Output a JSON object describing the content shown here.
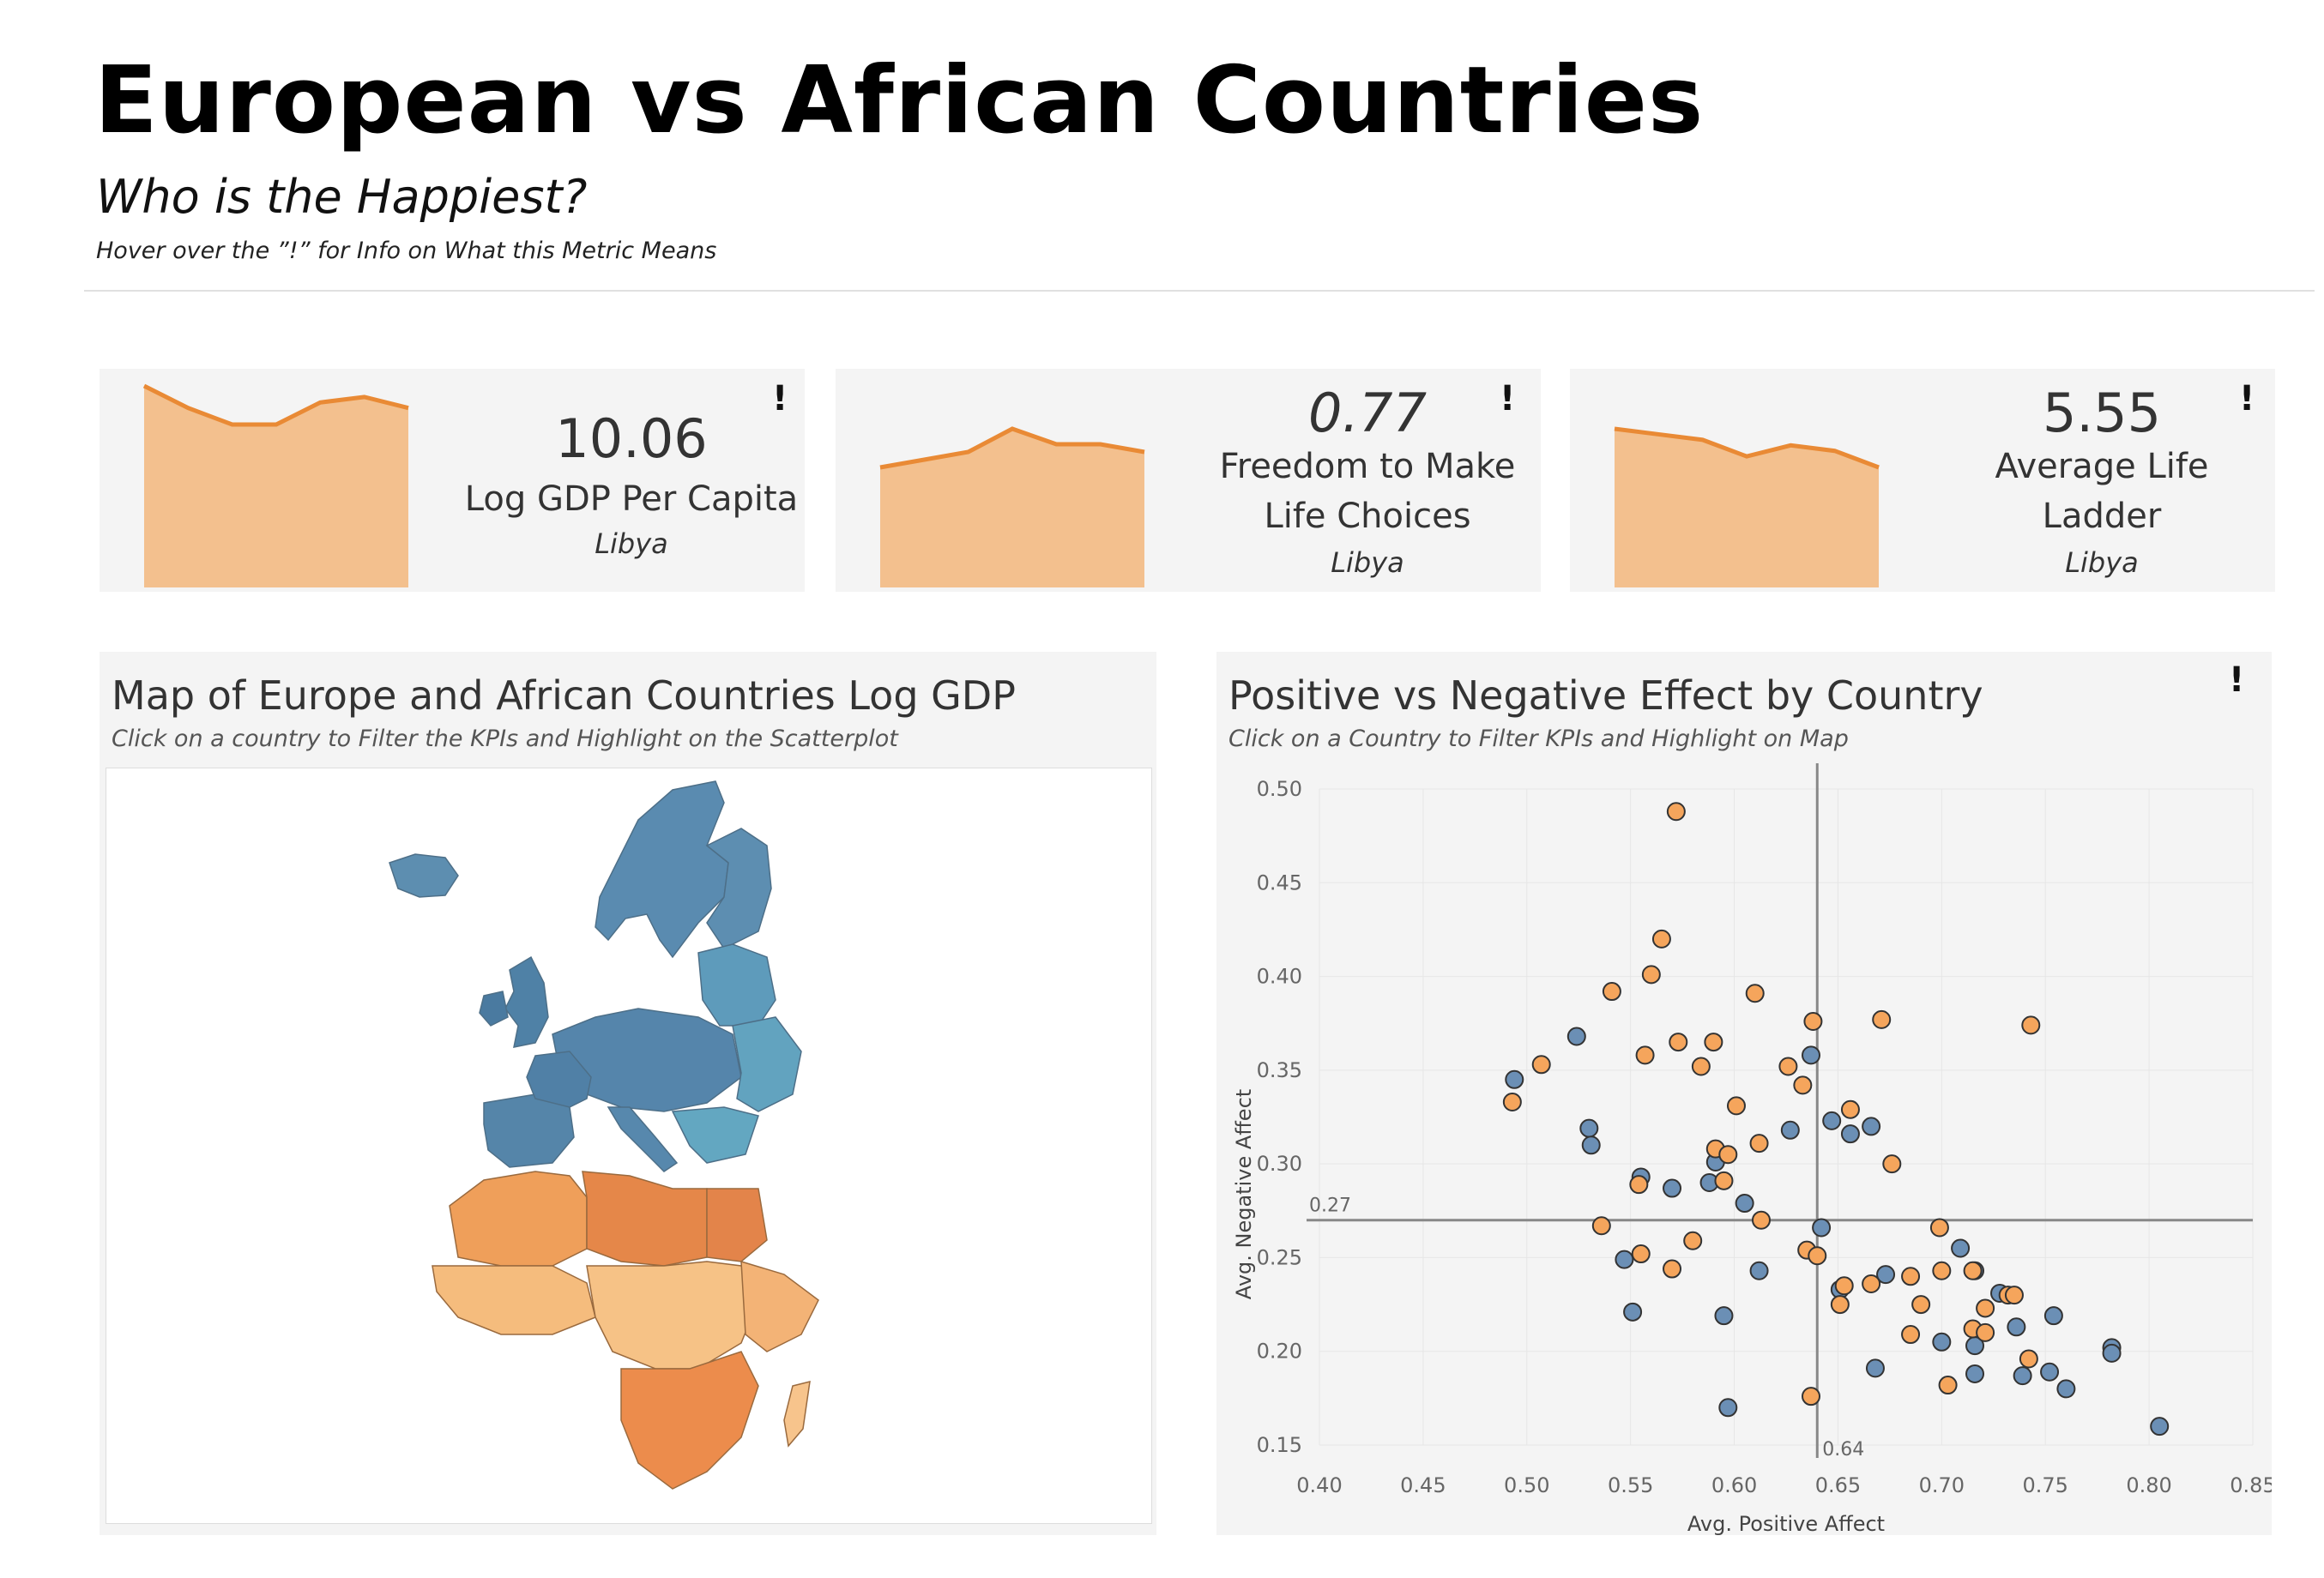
{
  "header": {
    "title": "European vs African Countries",
    "subtitle": "Who is the Happiest?",
    "hint": "Hover over the ”!” for Info on What this Metric Means"
  },
  "kpis": [
    {
      "value": "10.06",
      "label": "Log GDP Per Capita",
      "country": "Libya",
      "info_icon": "!",
      "trend": [
        9.95,
        9.91,
        9.88,
        9.88,
        9.92,
        9.93,
        9.91
      ]
    },
    {
      "value": "0.77",
      "label": "Freedom to Make Life Choices",
      "country": "Libya",
      "info_icon": "!",
      "trend": [
        0.74,
        0.75,
        0.76,
        0.79,
        0.77,
        0.77,
        0.76
      ]
    },
    {
      "value": "5.55",
      "label": "Average Life Ladder",
      "country": "Libya",
      "info_icon": "!",
      "trend": [
        5.62,
        5.61,
        5.6,
        5.57,
        5.59,
        5.58,
        5.55
      ]
    }
  ],
  "map_panel": {
    "title": "Map of Europe and African Countries Log GDP",
    "subtitle": "Click on a country to Filter the KPIs and Highlight on the Scatterplot",
    "colors": {
      "europe": "#5b8db0",
      "africa": "#f0a55b"
    }
  },
  "scatter_panel": {
    "title": "Positive vs Negative Effect by Country",
    "subtitle": "Click on a Country to Filter KPIs and Highlight on Map",
    "info_icon": "!"
  },
  "chart_data": {
    "type": "scatter",
    "xlabel": "Avg. Positive Affect",
    "ylabel": "Avg. Negative Affect",
    "xlim": [
      0.4,
      0.85
    ],
    "ylim": [
      0.15,
      0.5
    ],
    "x_ticks": [
      "0.40",
      "0.45",
      "0.50",
      "0.55",
      "0.60",
      "0.65",
      "0.70",
      "0.75",
      "0.80",
      "0.85"
    ],
    "y_ticks": [
      "0.15",
      "0.20",
      "0.25",
      "0.30",
      "0.35",
      "0.40",
      "0.45",
      "0.50"
    ],
    "reference_lines": {
      "x": 0.64,
      "x_label": "0.64",
      "y": 0.27,
      "y_label": "0.27"
    },
    "grid": true,
    "colors": {
      "Europe": "#6b8fb5",
      "Africa": "#f5a55c"
    },
    "series": [
      {
        "group": "Europe",
        "points": [
          [
            0.494,
            0.345
          ],
          [
            0.524,
            0.368
          ],
          [
            0.53,
            0.319
          ],
          [
            0.531,
            0.31
          ],
          [
            0.555,
            0.293
          ],
          [
            0.57,
            0.287
          ],
          [
            0.547,
            0.249
          ],
          [
            0.551,
            0.221
          ],
          [
            0.591,
            0.301
          ],
          [
            0.588,
            0.29
          ],
          [
            0.605,
            0.279
          ],
          [
            0.612,
            0.243
          ],
          [
            0.595,
            0.219
          ],
          [
            0.597,
            0.17
          ],
          [
            0.627,
            0.318
          ],
          [
            0.637,
            0.358
          ],
          [
            0.647,
            0.323
          ],
          [
            0.656,
            0.316
          ],
          [
            0.666,
            0.32
          ],
          [
            0.642,
            0.266
          ],
          [
            0.651,
            0.233
          ],
          [
            0.673,
            0.241
          ],
          [
            0.668,
            0.191
          ],
          [
            0.7,
            0.205
          ],
          [
            0.709,
            0.255
          ],
          [
            0.716,
            0.243
          ],
          [
            0.716,
            0.188
          ],
          [
            0.728,
            0.231
          ],
          [
            0.736,
            0.213
          ],
          [
            0.739,
            0.187
          ],
          [
            0.752,
            0.189
          ],
          [
            0.754,
            0.219
          ],
          [
            0.76,
            0.18
          ],
          [
            0.782,
            0.202
          ],
          [
            0.782,
            0.199
          ],
          [
            0.805,
            0.16
          ],
          [
            0.716,
            0.203
          ]
        ]
      },
      {
        "group": "Africa",
        "points": [
          [
            0.572,
            0.488
          ],
          [
            0.565,
            0.42
          ],
          [
            0.56,
            0.401
          ],
          [
            0.541,
            0.392
          ],
          [
            0.61,
            0.391
          ],
          [
            0.507,
            0.353
          ],
          [
            0.557,
            0.358
          ],
          [
            0.573,
            0.365
          ],
          [
            0.59,
            0.365
          ],
          [
            0.584,
            0.352
          ],
          [
            0.626,
            0.352
          ],
          [
            0.638,
            0.376
          ],
          [
            0.671,
            0.377
          ],
          [
            0.743,
            0.374
          ],
          [
            0.493,
            0.333
          ],
          [
            0.601,
            0.331
          ],
          [
            0.633,
            0.342
          ],
          [
            0.656,
            0.329
          ],
          [
            0.591,
            0.308
          ],
          [
            0.597,
            0.305
          ],
          [
            0.612,
            0.311
          ],
          [
            0.676,
            0.3
          ],
          [
            0.536,
            0.267
          ],
          [
            0.554,
            0.289
          ],
          [
            0.555,
            0.252
          ],
          [
            0.57,
            0.244
          ],
          [
            0.58,
            0.259
          ],
          [
            0.613,
            0.27
          ],
          [
            0.635,
            0.254
          ],
          [
            0.64,
            0.251
          ],
          [
            0.653,
            0.235
          ],
          [
            0.651,
            0.225
          ],
          [
            0.666,
            0.236
          ],
          [
            0.685,
            0.24
          ],
          [
            0.699,
            0.266
          ],
          [
            0.7,
            0.243
          ],
          [
            0.715,
            0.243
          ],
          [
            0.69,
            0.225
          ],
          [
            0.685,
            0.209
          ],
          [
            0.703,
            0.182
          ],
          [
            0.715,
            0.212
          ],
          [
            0.721,
            0.21
          ],
          [
            0.721,
            0.223
          ],
          [
            0.732,
            0.23
          ],
          [
            0.735,
            0.23
          ],
          [
            0.742,
            0.196
          ],
          [
            0.637,
            0.176
          ],
          [
            0.595,
            0.291
          ]
        ]
      }
    ]
  }
}
